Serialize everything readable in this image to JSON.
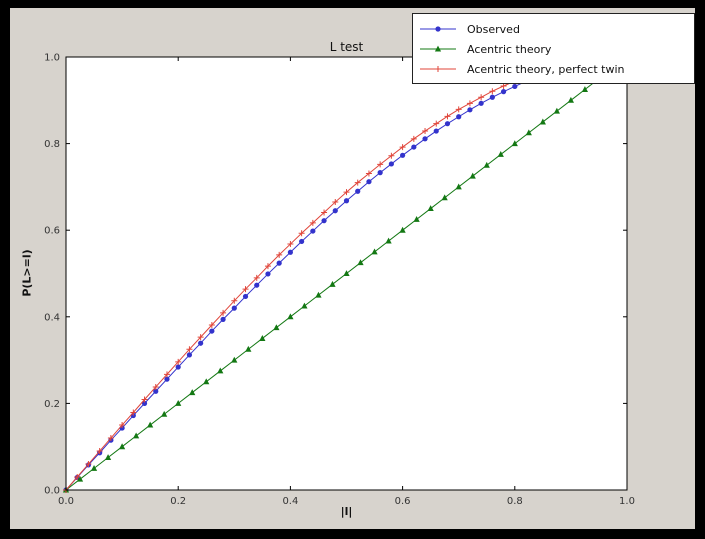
{
  "figure": {
    "outer_background": "#000000",
    "window_background": "#d7d3cd",
    "plot_background": "#ffffff",
    "axis_color": "#000000",
    "tick_label_color": "#333333"
  },
  "chart_data": {
    "type": "line",
    "title": "L test",
    "xlabel": "|l|",
    "ylabel": "P(L>=l)",
    "xlim": [
      0.0,
      1.0
    ],
    "ylim": [
      0.0,
      1.0
    ],
    "x_ticks": [
      0.0,
      0.2,
      0.4,
      0.6,
      0.8,
      1.0
    ],
    "y_ticks": [
      0.0,
      0.2,
      0.4,
      0.6,
      0.8,
      1.0
    ],
    "grid": false,
    "legend_position": "upper right",
    "series": [
      {
        "name": "Observed",
        "color": "#3333cc",
        "marker": "circle",
        "x": [
          0,
          0.02,
          0.04,
          0.06,
          0.08,
          0.1,
          0.12,
          0.14,
          0.16,
          0.18,
          0.2,
          0.22,
          0.24,
          0.26,
          0.28,
          0.3,
          0.32,
          0.34,
          0.36,
          0.38,
          0.4,
          0.42,
          0.44,
          0.46,
          0.48,
          0.5,
          0.52,
          0.54,
          0.56,
          0.58,
          0.6,
          0.62,
          0.64,
          0.66,
          0.68,
          0.7,
          0.72,
          0.74,
          0.76,
          0.78,
          0.8,
          0.82,
          0.84,
          0.86
        ],
        "y": [
          0,
          0.029,
          0.058,
          0.086,
          0.115,
          0.143,
          0.172,
          0.2,
          0.228,
          0.256,
          0.284,
          0.312,
          0.339,
          0.367,
          0.394,
          0.42,
          0.447,
          0.473,
          0.499,
          0.524,
          0.549,
          0.574,
          0.598,
          0.622,
          0.645,
          0.668,
          0.69,
          0.712,
          0.733,
          0.753,
          0.773,
          0.792,
          0.811,
          0.829,
          0.846,
          0.862,
          0.878,
          0.893,
          0.907,
          0.92,
          0.932,
          0.944,
          0.954,
          0.964
        ]
      },
      {
        "name": "Acentric theory",
        "color": "#137813",
        "marker": "triangle",
        "x": [
          0,
          0.025,
          0.05,
          0.075,
          0.1,
          0.125,
          0.15,
          0.175,
          0.2,
          0.225,
          0.25,
          0.275,
          0.3,
          0.325,
          0.35,
          0.375,
          0.4,
          0.425,
          0.45,
          0.475,
          0.5,
          0.525,
          0.55,
          0.575,
          0.6,
          0.625,
          0.65,
          0.675,
          0.7,
          0.725,
          0.75,
          0.775,
          0.8,
          0.825,
          0.85,
          0.875,
          0.9,
          0.925,
          0.95,
          0.975
        ],
        "y": [
          0,
          0.025,
          0.05,
          0.075,
          0.1,
          0.125,
          0.15,
          0.175,
          0.2,
          0.225,
          0.25,
          0.275,
          0.3,
          0.325,
          0.35,
          0.375,
          0.4,
          0.425,
          0.45,
          0.475,
          0.5,
          0.525,
          0.55,
          0.575,
          0.6,
          0.625,
          0.65,
          0.675,
          0.7,
          0.725,
          0.75,
          0.775,
          0.8,
          0.825,
          0.85,
          0.875,
          0.9,
          0.925,
          0.95,
          0.975
        ]
      },
      {
        "name": "Acentric theory, perfect twin",
        "color": "#e0453a",
        "marker": "plus",
        "x": [
          0,
          0.02,
          0.04,
          0.06,
          0.08,
          0.1,
          0.12,
          0.14,
          0.16,
          0.18,
          0.2,
          0.22,
          0.24,
          0.26,
          0.28,
          0.3,
          0.32,
          0.34,
          0.36,
          0.38,
          0.4,
          0.42,
          0.44,
          0.46,
          0.48,
          0.5,
          0.52,
          0.54,
          0.56,
          0.58,
          0.6,
          0.62,
          0.64,
          0.66,
          0.68,
          0.7,
          0.72,
          0.74,
          0.76,
          0.78,
          0.8,
          0.82,
          0.84,
          0.86
        ],
        "y": [
          0,
          0.03,
          0.06,
          0.09,
          0.12,
          0.15,
          0.179,
          0.209,
          0.238,
          0.267,
          0.296,
          0.325,
          0.353,
          0.381,
          0.409,
          0.437,
          0.464,
          0.49,
          0.517,
          0.543,
          0.568,
          0.593,
          0.617,
          0.641,
          0.665,
          0.688,
          0.71,
          0.731,
          0.752,
          0.772,
          0.792,
          0.811,
          0.829,
          0.846,
          0.863,
          0.879,
          0.893,
          0.907,
          0.921,
          0.933,
          0.944,
          0.954,
          0.964,
          0.972
        ]
      }
    ]
  }
}
